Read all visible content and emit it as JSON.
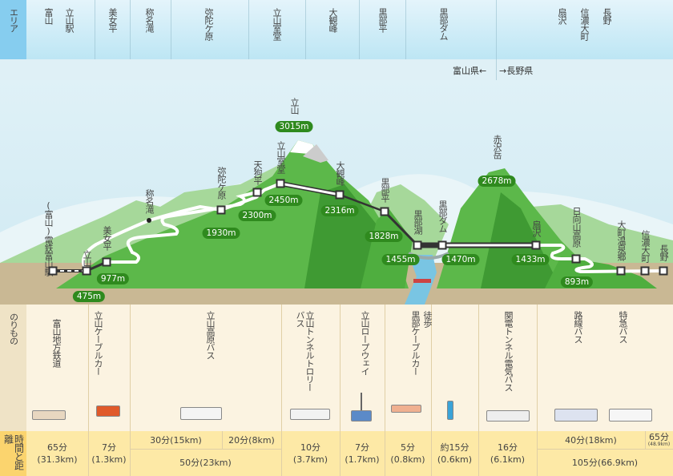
{
  "area": {
    "label": "エリア",
    "places": [
      "富山",
      "立山駅",
      "美女平",
      "称名滝",
      "弥陀ケ原",
      "立山室堂",
      "大観峰",
      "黒部平",
      "黒部ダム",
      "扇沢",
      "信濃大町",
      "長野"
    ]
  },
  "prefecture": {
    "toyama": "富山県←",
    "nagano": "→長野県"
  },
  "peaks": [
    {
      "name": "立山",
      "elevation": "3015m"
    },
    {
      "name": "赤沢岳",
      "elevation": "2678m"
    }
  ],
  "stations": [
    {
      "name": "(富山)電鉄富山駅",
      "elevation": ""
    },
    {
      "name": "立山駅",
      "elevation": "475m"
    },
    {
      "name": "美女平",
      "elevation": "977m"
    },
    {
      "name": "称名滝",
      "elevation": ""
    },
    {
      "name": "弥陀ケ原",
      "elevation": "1930m"
    },
    {
      "name": "天狗平",
      "elevation": "2300m"
    },
    {
      "name": "立山室堂",
      "elevation": "2450m"
    },
    {
      "name": "大観峰",
      "elevation": "2316m"
    },
    {
      "name": "黒部平",
      "elevation": "1828m"
    },
    {
      "name": "黒部湖",
      "elevation": "1455m"
    },
    {
      "name": "黒部ダム",
      "elevation": "1470m"
    },
    {
      "name": "扇沢",
      "elevation": "1433m"
    },
    {
      "name": "日向山高原",
      "elevation": "893m"
    },
    {
      "name": "大町温泉郷",
      "elevation": ""
    },
    {
      "name": "信濃大町",
      "elevation": ""
    },
    {
      "name": "長野",
      "elevation": ""
    }
  ],
  "vehicles": {
    "label": "のりもの",
    "items": [
      "富山地方鉄道",
      "立山ケーブルカー",
      "立山高原バス",
      "立山トンネルトロリーバス",
      "立山ロープウェイ",
      "黒部ケーブルカー",
      "徒歩",
      "関電トンネル電気バス",
      "路線バス",
      "特急バス"
    ]
  },
  "times": {
    "label": "時間と距離",
    "items": [
      "65分(31.3km)",
      "7分(1.3km)",
      "30分(15km)",
      "20分(8km)",
      "50分(23km)",
      "10分(3.7km)",
      "7分(1.7km)",
      "5分(0.8km)",
      "約15分(0.6km)",
      "16分(6.1km)",
      "40分(18km)",
      "65分",
      "(48.9km)",
      "105分(66.9km)"
    ]
  }
}
